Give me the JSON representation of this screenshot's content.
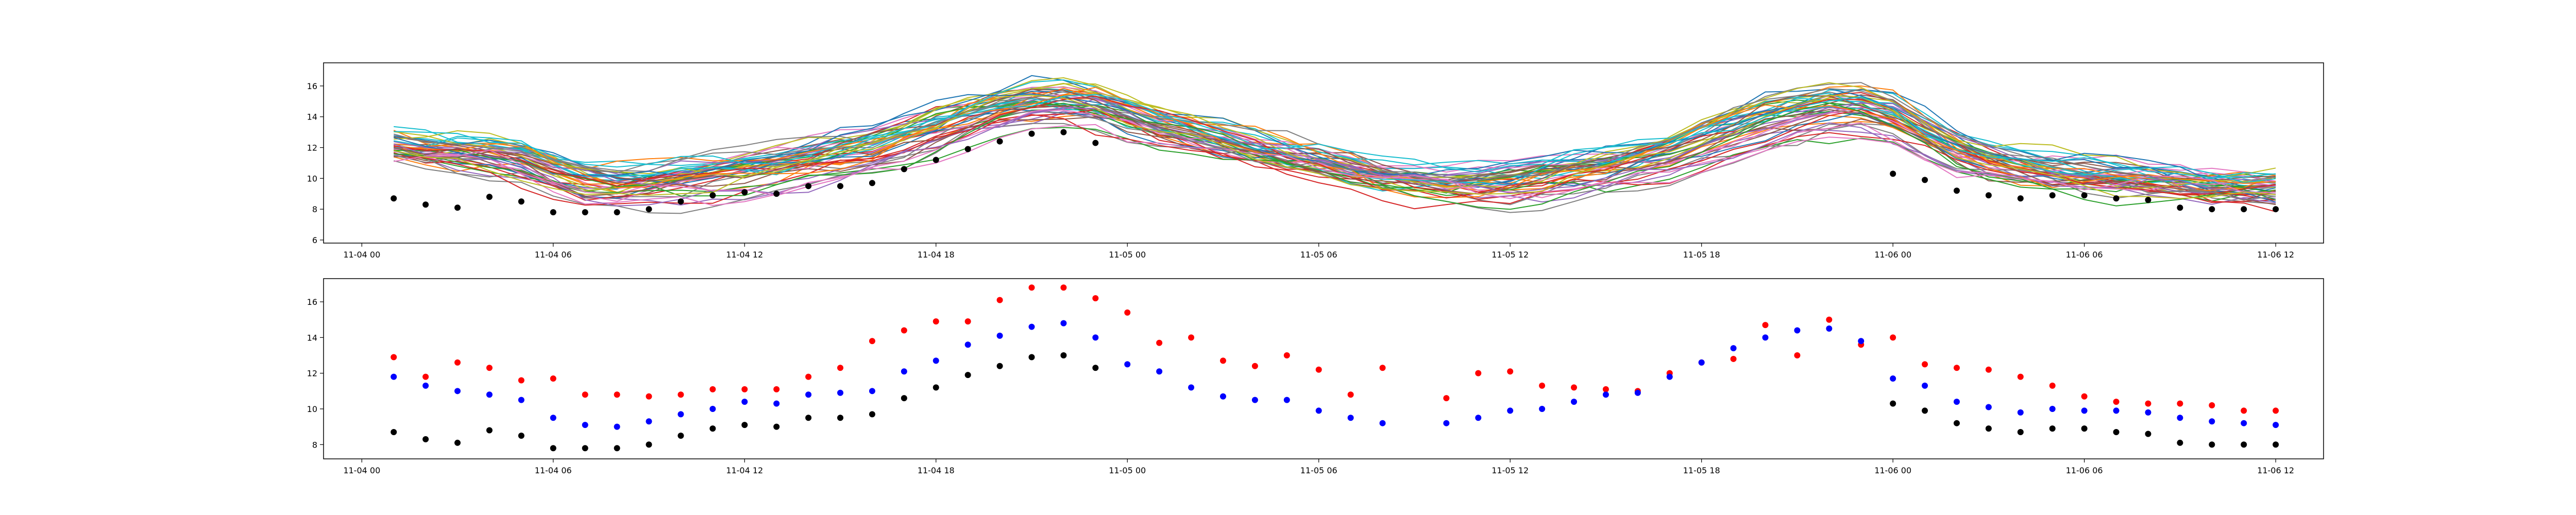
{
  "chart_data": [
    {
      "type": "line",
      "title": "",
      "xlabel": "",
      "ylabel": "",
      "x_unit": "hours since 11-04 00:00",
      "xlim": [
        -1.2,
        61.5
      ],
      "ylim": [
        5.8,
        17.5
      ],
      "x_ticks": [
        {
          "x": 0,
          "label": "11-04 00"
        },
        {
          "x": 6,
          "label": "11-04 06"
        },
        {
          "x": 12,
          "label": "11-04 12"
        },
        {
          "x": 18,
          "label": "11-04 18"
        },
        {
          "x": 24,
          "label": "11-05 00"
        },
        {
          "x": 30,
          "label": "11-05 06"
        },
        {
          "x": 36,
          "label": "11-05 12"
        },
        {
          "x": 42,
          "label": "11-05 18"
        },
        {
          "x": 48,
          "label": "11-06 00"
        },
        {
          "x": 54,
          "label": "11-06 06"
        },
        {
          "x": 60,
          "label": "11-06 12"
        }
      ],
      "y_ticks": [
        {
          "y": 6,
          "label": "6"
        },
        {
          "y": 8,
          "label": "8"
        },
        {
          "y": 10,
          "label": "10"
        },
        {
          "y": 12,
          "label": "12"
        },
        {
          "y": 14,
          "label": "14"
        },
        {
          "y": 16,
          "label": "16"
        }
      ],
      "ensemble": {
        "count": 50,
        "x": [
          1,
          2,
          3,
          4,
          5,
          6,
          7,
          8,
          9,
          10,
          11,
          12,
          13,
          14,
          15,
          16,
          17,
          18,
          19,
          20,
          21,
          22,
          23,
          24,
          25,
          26,
          27,
          28,
          29,
          30,
          31,
          32,
          33,
          34,
          35,
          36,
          37,
          38,
          39,
          40,
          41,
          42,
          43,
          44,
          45,
          46,
          47,
          48,
          49,
          50,
          51,
          52,
          53,
          54,
          55,
          56,
          57,
          58,
          59,
          60
        ],
        "mean": [
          11.9,
          11.6,
          11.5,
          11.3,
          11.0,
          10.2,
          9.5,
          9.3,
          9.4,
          9.6,
          9.9,
          10.2,
          10.5,
          10.9,
          11.3,
          11.7,
          12.4,
          13.1,
          13.8,
          14.3,
          14.7,
          14.8,
          14.6,
          14.0,
          13.3,
          12.7,
          12.2,
          11.7,
          11.3,
          11.0,
          10.5,
          10.0,
          9.6,
          9.4,
          9.4,
          9.5,
          9.8,
          10.1,
          10.4,
          10.8,
          11.3,
          12.1,
          12.8,
          13.5,
          14.0,
          14.4,
          14.5,
          14.0,
          12.8,
          11.7,
          11.0,
          10.6,
          10.3,
          10.1,
          9.9,
          9.7,
          9.5,
          9.3,
          9.2,
          9.1
        ],
        "colors": [
          "#1f77b4",
          "#ff7f0e",
          "#2ca02c",
          "#d62728",
          "#9467bd",
          "#8c564b",
          "#e377c2",
          "#7f7f7f",
          "#bcbd22",
          "#17becf"
        ]
      },
      "series": [
        {
          "name": "",
          "style": "markers",
          "color": "#000000",
          "x": [
            1,
            2,
            3,
            4,
            5,
            6,
            7,
            8,
            9,
            10,
            11,
            12,
            13,
            14,
            15,
            16,
            17,
            18,
            19,
            20,
            21,
            22,
            23,
            48,
            49,
            50,
            51,
            52,
            53,
            54,
            55,
            56,
            57,
            58,
            59,
            60
          ],
          "values": [
            8.7,
            8.3,
            8.1,
            8.8,
            8.5,
            7.8,
            7.8,
            7.8,
            8.0,
            8.5,
            8.9,
            9.1,
            9.0,
            9.5,
            9.5,
            9.7,
            10.6,
            11.2,
            11.9,
            12.4,
            12.9,
            13.0,
            12.3,
            10.3,
            9.9,
            9.2,
            8.9,
            8.7,
            8.9,
            8.9,
            8.7,
            8.6,
            8.1,
            8.0,
            8.0,
            8.0
          ]
        }
      ]
    },
    {
      "type": "scatter",
      "title": "",
      "xlabel": "",
      "ylabel": "",
      "x_unit": "hours since 11-04 00:00",
      "xlim": [
        -1.2,
        61.5
      ],
      "ylim": [
        7.2,
        17.3
      ],
      "x_ticks": [
        {
          "x": 0,
          "label": "11-04 00"
        },
        {
          "x": 6,
          "label": "11-04 06"
        },
        {
          "x": 12,
          "label": "11-04 12"
        },
        {
          "x": 18,
          "label": "11-04 18"
        },
        {
          "x": 24,
          "label": "11-05 00"
        },
        {
          "x": 30,
          "label": "11-05 06"
        },
        {
          "x": 36,
          "label": "11-05 12"
        },
        {
          "x": 42,
          "label": "11-05 18"
        },
        {
          "x": 48,
          "label": "11-06 00"
        },
        {
          "x": 54,
          "label": "11-06 06"
        },
        {
          "x": 60,
          "label": "11-06 12"
        }
      ],
      "y_ticks": [
        {
          "y": 8,
          "label": "8"
        },
        {
          "y": 10,
          "label": "10"
        },
        {
          "y": 12,
          "label": "12"
        },
        {
          "y": 14,
          "label": "14"
        },
        {
          "y": 16,
          "label": "16"
        }
      ],
      "series": [
        {
          "name": "",
          "color": "#ff0000",
          "x": [
            1,
            2,
            3,
            4,
            5,
            6,
            7,
            8,
            9,
            10,
            11,
            12,
            13,
            14,
            15,
            16,
            17,
            18,
            19,
            20,
            21,
            22,
            23,
            24,
            25,
            26,
            27,
            28,
            29,
            30,
            31,
            32,
            34,
            35,
            36,
            37,
            38,
            39,
            40,
            41,
            42,
            43,
            44,
            45,
            46,
            47,
            48,
            49,
            50,
            51,
            52,
            53,
            54,
            55,
            56,
            57,
            58,
            59,
            60
          ],
          "values": [
            12.9,
            11.8,
            12.6,
            12.3,
            11.6,
            11.7,
            10.8,
            10.8,
            10.7,
            10.8,
            11.1,
            11.1,
            11.1,
            11.8,
            12.3,
            13.8,
            14.4,
            14.9,
            14.9,
            16.1,
            16.8,
            16.8,
            16.2,
            15.4,
            13.7,
            14.0,
            12.7,
            12.4,
            13.0,
            12.2,
            10.8,
            12.3,
            10.6,
            12.0,
            12.1,
            11.3,
            11.2,
            11.1,
            11.0,
            12.0,
            12.6,
            12.8,
            14.7,
            13.0,
            15.0,
            13.6,
            14.0,
            12.5,
            12.3,
            12.2,
            11.8,
            11.3,
            10.7,
            10.4,
            10.3,
            10.3,
            10.2,
            9.9,
            9.9
          ]
        },
        {
          "name": "",
          "color": "#0000ff",
          "x": [
            1,
            2,
            3,
            4,
            5,
            6,
            7,
            8,
            9,
            10,
            11,
            12,
            13,
            14,
            15,
            16,
            17,
            18,
            19,
            20,
            21,
            22,
            23,
            24,
            25,
            26,
            27,
            28,
            29,
            30,
            31,
            32,
            34,
            35,
            36,
            37,
            38,
            39,
            40,
            41,
            42,
            43,
            44,
            45,
            46,
            47,
            48,
            49,
            50,
            51,
            52,
            53,
            54,
            55,
            56,
            57,
            58,
            59,
            60
          ],
          "values": [
            11.8,
            11.3,
            11.0,
            10.8,
            10.5,
            9.5,
            9.1,
            9.0,
            9.3,
            9.7,
            10.0,
            10.4,
            10.3,
            10.8,
            10.9,
            11.0,
            12.1,
            12.7,
            13.6,
            14.1,
            14.6,
            14.8,
            14.0,
            12.5,
            12.1,
            11.2,
            10.7,
            10.5,
            10.5,
            9.9,
            9.5,
            9.2,
            9.2,
            9.5,
            9.9,
            10.0,
            10.4,
            10.8,
            10.9,
            11.8,
            12.6,
            13.4,
            14.0,
            14.4,
            14.5,
            13.8,
            11.7,
            11.3,
            10.4,
            10.1,
            9.8,
            10.0,
            9.9,
            9.9,
            9.8,
            9.5,
            9.3,
            9.2,
            9.1
          ]
        },
        {
          "name": "",
          "color": "#000000",
          "x": [
            1,
            2,
            3,
            4,
            5,
            6,
            7,
            8,
            9,
            10,
            11,
            12,
            13,
            14,
            15,
            16,
            17,
            18,
            19,
            20,
            21,
            22,
            23,
            48,
            49,
            50,
            51,
            52,
            53,
            54,
            55,
            56,
            57,
            58,
            59,
            60
          ],
          "values": [
            8.7,
            8.3,
            8.1,
            8.8,
            8.5,
            7.8,
            7.8,
            7.8,
            8.0,
            8.5,
            8.9,
            9.1,
            9.0,
            9.5,
            9.5,
            9.7,
            10.6,
            11.2,
            11.9,
            12.4,
            12.9,
            13.0,
            12.3,
            10.3,
            9.9,
            9.2,
            8.9,
            8.7,
            8.9,
            8.9,
            8.7,
            8.6,
            8.1,
            8.0,
            8.0,
            8.0
          ]
        }
      ]
    }
  ]
}
